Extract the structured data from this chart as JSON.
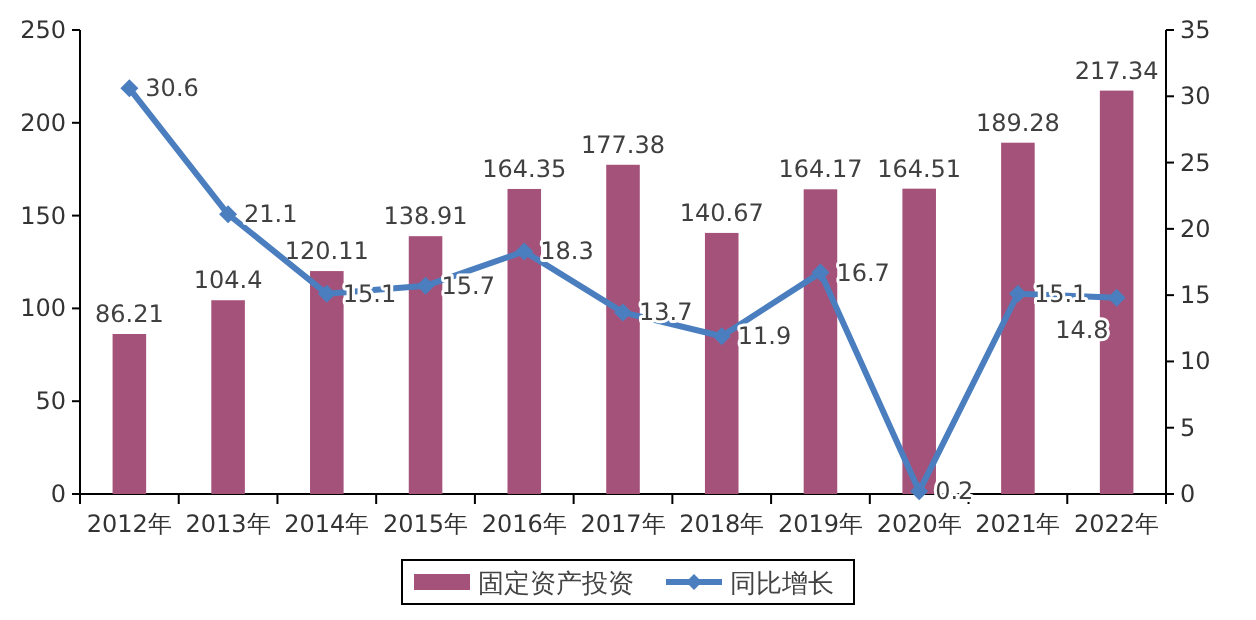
{
  "chart_data": {
    "type": "bar",
    "categories": [
      "2012年",
      "2013年",
      "2014年",
      "2015年",
      "2016年",
      "2017年",
      "2018年",
      "2019年",
      "2020年",
      "2021年",
      "2022年"
    ],
    "series": [
      {
        "name": "固定资产投资",
        "color": "#a5527a",
        "values": [
          86.21,
          104.4,
          120.11,
          138.91,
          164.35,
          177.38,
          140.67,
          164.17,
          164.51,
          189.28,
          217.34
        ]
      },
      {
        "name": "同比增长",
        "type": "line",
        "axis": "y2",
        "color": "#4a7ebf",
        "marker": "diamond",
        "values": [
          30.6,
          21.1,
          15.1,
          15.7,
          18.3,
          13.7,
          11.9,
          16.7,
          0.2,
          15.1,
          14.8
        ]
      }
    ],
    "ylim": [
      0,
      250
    ],
    "yticks": [
      0,
      50,
      100,
      150,
      200,
      250
    ],
    "y2lim": [
      0,
      35
    ],
    "y2ticks": [
      0,
      5,
      10,
      15,
      20,
      25,
      30,
      35
    ],
    "data_labels": true,
    "grid": false,
    "legend": "bottom"
  }
}
